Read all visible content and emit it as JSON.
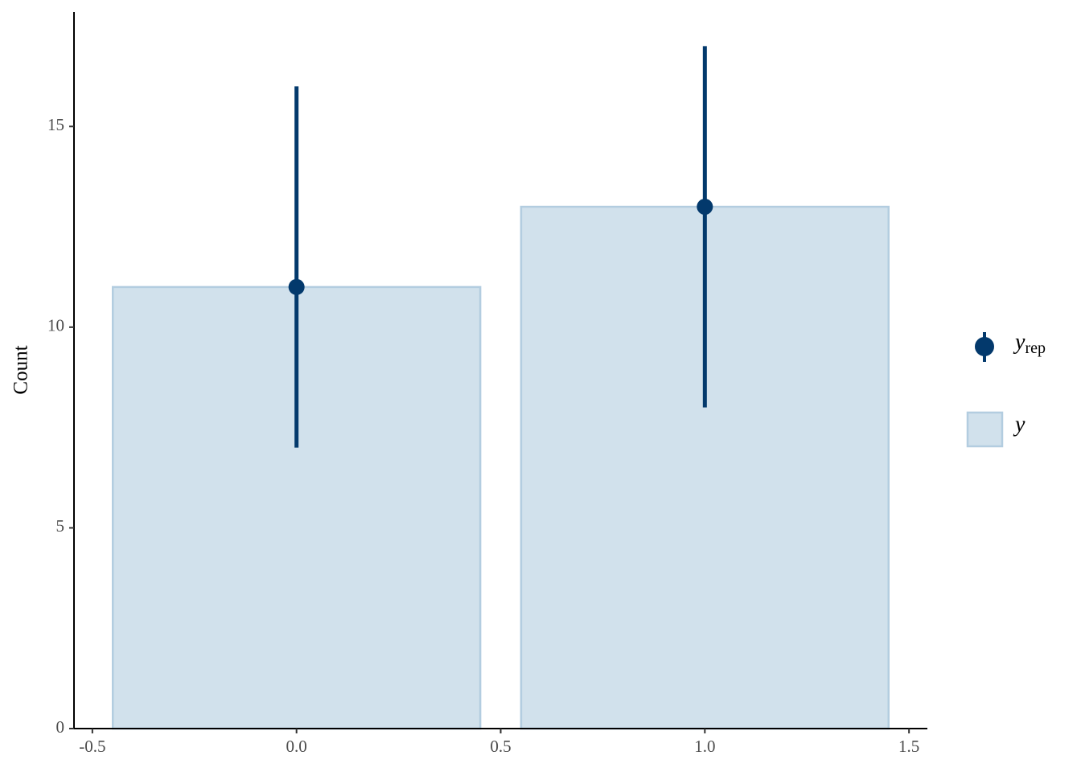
{
  "chart_data": {
    "type": "bar",
    "y_label": "Count",
    "x": [
      0,
      1
    ],
    "bar_width": 0.9,
    "series": [
      {
        "name": "y",
        "values": [
          11,
          13
        ],
        "color": "#d1e1ec",
        "edge_color": "#b3cde0"
      },
      {
        "name": "y",
        "name_subscript": "rep",
        "values": [
          11,
          13
        ],
        "lower": [
          7,
          8
        ],
        "upper": [
          16,
          17
        ],
        "color": "#03396c"
      }
    ],
    "xlim": [
      -0.545,
      1.545
    ],
    "xticks": [
      -0.5,
      {
        "value": 0,
        "label": "0.0"
      },
      0.5,
      {
        "value": 1,
        "label": "1.0"
      },
      1.5
    ],
    "ylim": [
      0,
      17.85
    ],
    "yticks": [
      0,
      5,
      10,
      15
    ],
    "grid": false
  }
}
